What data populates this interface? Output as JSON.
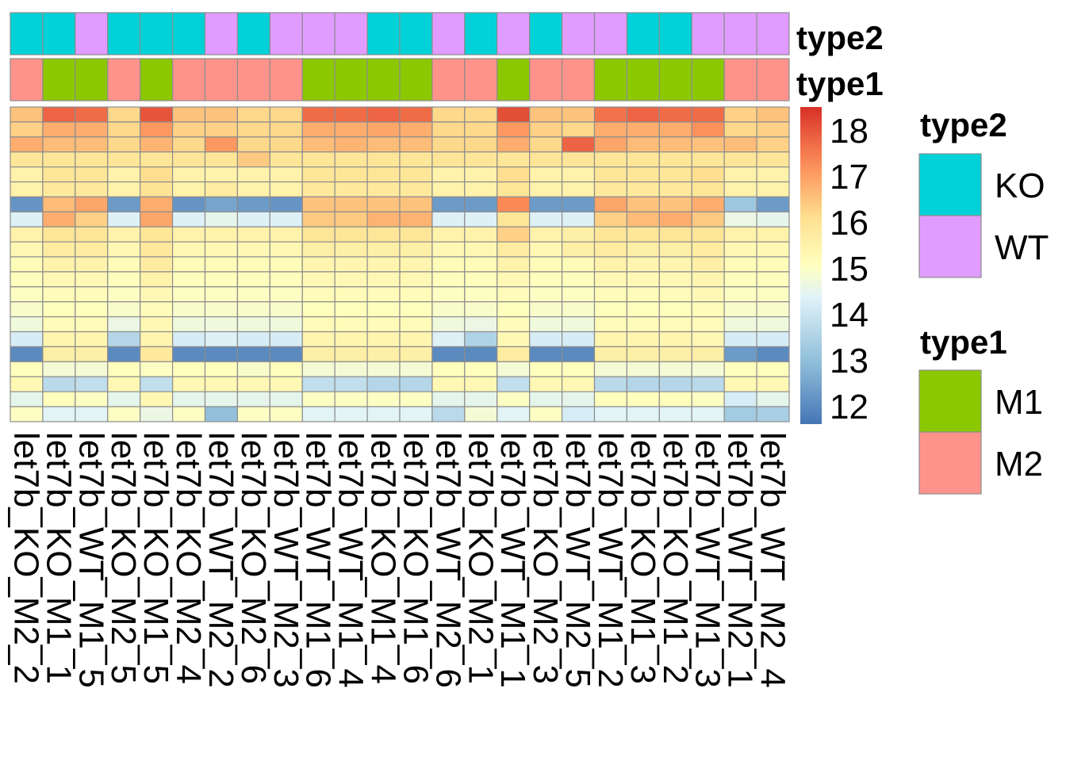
{
  "chart_data": {
    "type": "heatmap",
    "columns": [
      "let7b_KO_M2_2",
      "let7b_KO_M1_1",
      "let7b_WT_M1_5",
      "let7b_KO_M2_5",
      "let7b_KO_M1_5",
      "let7b_KO_M2_4",
      "let7b_WT_M2_2",
      "let7b_KO_M2_6",
      "let7b_WT_M2_3",
      "let7b_WT_M1_6",
      "let7b_WT_M1_4",
      "let7b_KO_M1_4",
      "let7b_KO_M1_6",
      "let7b_WT_M2_6",
      "let7b_KO_M2_1",
      "let7b_WT_M1_1",
      "let7b_KO_M2_3",
      "let7b_WT_M2_5",
      "let7b_WT_M1_2",
      "let7b_KO_M1_3",
      "let7b_KO_M1_2",
      "let7b_WT_M1_3",
      "let7b_WT_M2_1",
      "let7b_WT_M2_4"
    ],
    "annotations": {
      "type2": [
        "KO",
        "KO",
        "WT",
        "KO",
        "KO",
        "KO",
        "WT",
        "KO",
        "WT",
        "WT",
        "WT",
        "KO",
        "KO",
        "WT",
        "KO",
        "WT",
        "KO",
        "WT",
        "WT",
        "KO",
        "KO",
        "WT",
        "WT",
        "WT"
      ],
      "type1": [
        "M2",
        "M1",
        "M1",
        "M2",
        "M1",
        "M2",
        "M2",
        "M2",
        "M2",
        "M1",
        "M1",
        "M1",
        "M1",
        "M2",
        "M2",
        "M1",
        "M2",
        "M2",
        "M1",
        "M1",
        "M1",
        "M1",
        "M2",
        "M2"
      ]
    },
    "values": [
      [
        16.5,
        17.8,
        17.7,
        16.2,
        18.0,
        16.5,
        16.5,
        16.2,
        16.2,
        17.7,
        17.7,
        17.8,
        17.7,
        16.2,
        16.2,
        18.1,
        16.5,
        16.5,
        17.6,
        17.8,
        17.7,
        17.7,
        16.3,
        16.5
      ],
      [
        16.3,
        16.8,
        16.8,
        16.2,
        17.1,
        16.3,
        16.3,
        16.2,
        16.2,
        16.8,
        16.8,
        16.9,
        16.8,
        16.2,
        16.2,
        17.1,
        16.3,
        16.2,
        16.8,
        16.8,
        16.8,
        17.2,
        16.2,
        16.3
      ],
      [
        16.8,
        16.6,
        16.6,
        16.2,
        16.7,
        16.2,
        17.1,
        16.2,
        16.2,
        16.6,
        16.7,
        16.6,
        16.6,
        16.2,
        16.2,
        16.8,
        16.2,
        17.8,
        16.9,
        16.6,
        16.6,
        16.5,
        16.6,
        16.3
      ],
      [
        15.9,
        15.9,
        15.9,
        15.9,
        15.9,
        15.9,
        15.9,
        16.4,
        15.9,
        15.9,
        15.9,
        15.9,
        15.9,
        15.9,
        15.9,
        15.9,
        15.9,
        15.9,
        15.9,
        15.9,
        15.9,
        15.9,
        15.9,
        15.9
      ],
      [
        15.5,
        15.9,
        15.9,
        15.5,
        16.1,
        15.5,
        15.5,
        15.5,
        15.5,
        15.9,
        15.9,
        15.9,
        15.9,
        15.5,
        15.5,
        16.1,
        15.5,
        15.5,
        15.9,
        15.9,
        15.9,
        16.1,
        15.5,
        15.5
      ],
      [
        15.5,
        15.8,
        15.8,
        15.5,
        16.0,
        15.5,
        15.7,
        15.5,
        15.5,
        15.8,
        15.8,
        15.8,
        15.8,
        15.5,
        15.5,
        15.9,
        15.5,
        15.5,
        15.8,
        15.8,
        15.8,
        15.9,
        15.5,
        15.5
      ],
      [
        12.2,
        16.6,
        16.9,
        12.3,
        16.8,
        12.2,
        12.5,
        12.3,
        12.2,
        16.5,
        16.5,
        16.5,
        16.5,
        12.3,
        12.3,
        17.3,
        12.3,
        12.3,
        16.9,
        16.5,
        16.5,
        16.8,
        13.2,
        12.3
      ],
      [
        14.3,
        16.8,
        16.3,
        14.3,
        16.9,
        14.3,
        14.5,
        14.3,
        14.3,
        16.4,
        16.4,
        16.7,
        16.7,
        14.3,
        14.3,
        15.9,
        14.3,
        14.3,
        16.3,
        16.6,
        16.8,
        16.4,
        14.6,
        14.5
      ],
      [
        15.5,
        15.9,
        15.9,
        15.5,
        15.9,
        15.5,
        15.5,
        15.5,
        15.5,
        15.9,
        15.9,
        15.9,
        15.9,
        15.5,
        15.5,
        16.3,
        15.5,
        15.6,
        15.9,
        15.9,
        15.9,
        15.9,
        15.5,
        15.5
      ],
      [
        15.3,
        15.7,
        15.7,
        15.3,
        15.8,
        15.3,
        15.3,
        15.3,
        15.3,
        15.6,
        15.6,
        15.6,
        15.6,
        15.3,
        15.3,
        15.7,
        15.3,
        15.6,
        15.7,
        15.6,
        15.6,
        15.7,
        15.3,
        15.3
      ],
      [
        15.2,
        15.5,
        15.5,
        15.2,
        15.7,
        15.2,
        15.2,
        15.2,
        15.2,
        15.4,
        15.4,
        15.4,
        15.4,
        15.2,
        15.2,
        15.5,
        15.2,
        15.2,
        15.5,
        15.4,
        15.4,
        15.6,
        15.2,
        15.2
      ],
      [
        15.1,
        15.3,
        15.3,
        15.1,
        15.5,
        15.1,
        15.1,
        15.1,
        15.1,
        15.3,
        15.3,
        15.3,
        15.3,
        15.1,
        15.1,
        15.3,
        15.1,
        15.1,
        15.3,
        15.3,
        15.3,
        15.4,
        15.1,
        15.1
      ],
      [
        15.0,
        15.2,
        15.2,
        15.0,
        15.3,
        15.0,
        15.0,
        15.0,
        15.0,
        15.2,
        15.2,
        15.2,
        15.2,
        15.0,
        15.0,
        15.2,
        15.0,
        15.0,
        15.2,
        15.2,
        15.2,
        15.3,
        15.0,
        15.0
      ],
      [
        14.9,
        15.1,
        15.1,
        14.9,
        15.2,
        14.9,
        14.9,
        14.9,
        14.9,
        15.1,
        15.1,
        15.1,
        15.1,
        14.9,
        14.9,
        15.1,
        14.9,
        14.9,
        15.1,
        15.1,
        15.1,
        15.2,
        14.9,
        14.9
      ],
      [
        14.7,
        15.2,
        15.2,
        14.6,
        15.3,
        14.7,
        14.7,
        14.7,
        14.7,
        15.2,
        15.2,
        15.2,
        15.2,
        14.7,
        14.6,
        15.2,
        14.7,
        14.7,
        15.2,
        15.2,
        15.2,
        15.2,
        14.7,
        14.7
      ],
      [
        14.2,
        15.4,
        15.4,
        13.6,
        15.4,
        14.2,
        14.3,
        14.2,
        14.2,
        15.4,
        15.4,
        15.4,
        15.4,
        14.3,
        13.5,
        15.3,
        14.2,
        14.2,
        15.4,
        15.4,
        15.4,
        15.3,
        14.2,
        14.2
      ],
      [
        12.0,
        15.6,
        15.6,
        12.0,
        15.8,
        12.0,
        12.0,
        12.0,
        12.0,
        15.6,
        15.6,
        15.6,
        15.6,
        12.0,
        12.0,
        15.7,
        12.0,
        12.0,
        15.6,
        15.6,
        15.6,
        15.6,
        12.3,
        12.0
      ],
      [
        15.1,
        14.8,
        14.8,
        15.1,
        15.0,
        15.1,
        15.1,
        14.9,
        15.1,
        14.8,
        14.8,
        14.8,
        14.8,
        15.1,
        15.1,
        14.8,
        15.1,
        15.1,
        14.8,
        14.8,
        14.8,
        14.8,
        15.1,
        15.1
      ],
      [
        15.3,
        13.7,
        13.8,
        15.3,
        13.8,
        15.3,
        15.3,
        15.3,
        15.3,
        13.8,
        13.8,
        13.6,
        13.6,
        15.3,
        15.3,
        13.8,
        15.3,
        15.3,
        13.7,
        13.6,
        13.6,
        13.7,
        15.3,
        15.3
      ],
      [
        14.5,
        15.1,
        15.0,
        14.5,
        15.3,
        14.5,
        14.5,
        14.5,
        14.5,
        15.0,
        15.0,
        15.0,
        15.0,
        14.5,
        14.5,
        15.0,
        14.5,
        14.5,
        15.1,
        15.1,
        15.1,
        15.0,
        14.2,
        14.5
      ],
      [
        15.0,
        14.4,
        14.4,
        15.0,
        14.6,
        15.0,
        13.0,
        15.0,
        15.0,
        14.4,
        14.4,
        14.4,
        14.4,
        13.7,
        14.8,
        14.4,
        15.0,
        14.2,
        14.4,
        14.4,
        14.4,
        14.4,
        13.3,
        13.4
      ]
    ],
    "colorbar": {
      "ticks": [
        12,
        13,
        14,
        15,
        16,
        17,
        18
      ],
      "range": [
        11.6,
        18.5
      ]
    },
    "colors": {
      "low": "#4575b4",
      "high": "#d73027",
      "annotation": {
        "type2": {
          "KO": "#00d2d8",
          "WT": "#e19cff"
        },
        "type1": {
          "M1": "#8cc800",
          "M2": "#ff938b"
        }
      }
    },
    "legends": [
      {
        "title": "type2",
        "items": [
          "KO",
          "WT"
        ]
      },
      {
        "title": "type1",
        "items": [
          "M1",
          "M2"
        ]
      }
    ],
    "annotation_labels": [
      "type2",
      "type1"
    ]
  }
}
